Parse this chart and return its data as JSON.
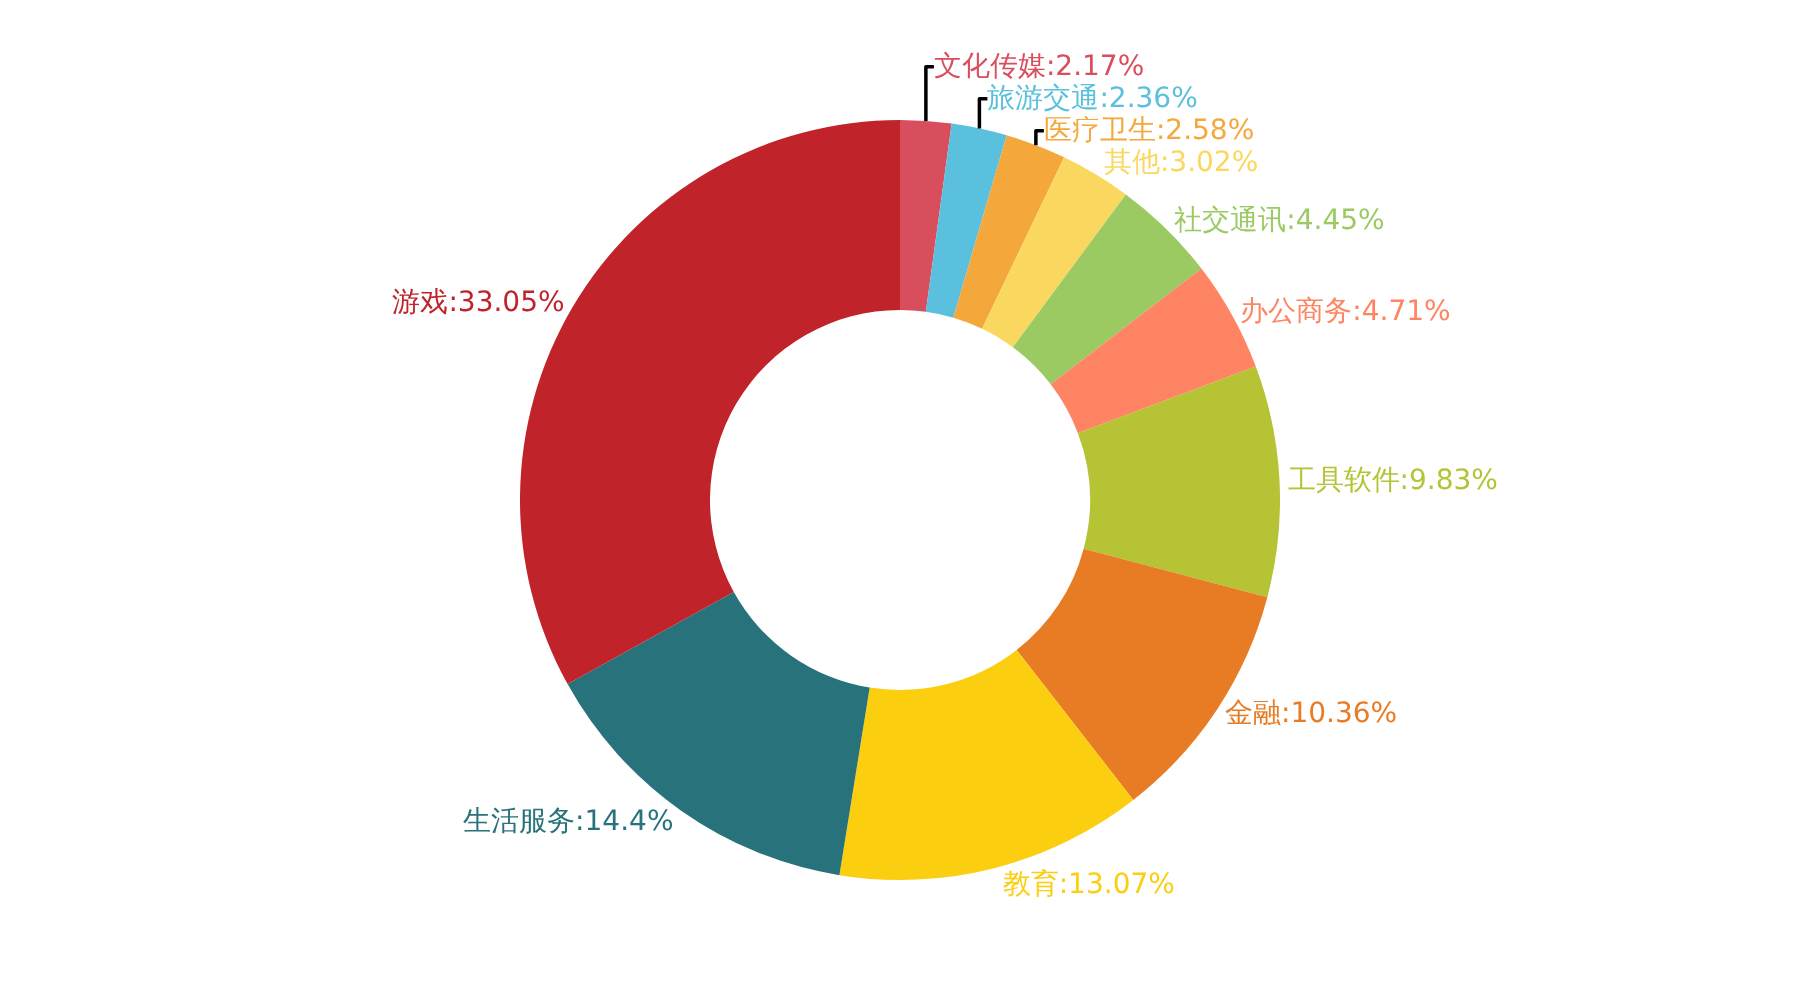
{
  "chart_data": {
    "type": "donut",
    "categories": [
      "文化传媒",
      "旅游交通",
      "医疗卫生",
      "其他",
      "社交通讯",
      "办公商务",
      "工具软件",
      "金融",
      "教育",
      "生活服务",
      "游戏"
    ],
    "values": [
      2.17,
      2.36,
      2.58,
      3.02,
      4.45,
      4.71,
      9.83,
      10.36,
      13.07,
      14.4,
      33.05
    ],
    "value_labels": [
      "2.17%",
      "2.36%",
      "2.58%",
      "3.02%",
      "4.45%",
      "4.71%",
      "9.83%",
      "10.36%",
      "13.07%",
      "14.4%",
      "33.05%"
    ],
    "colors": [
      "#d94e5d",
      "#5bc0de",
      "#f4a73a",
      "#fad860",
      "#9bca63",
      "#ff8463",
      "#b6c334",
      "#e87c25",
      "#fcce10",
      "#27727b",
      "#c1232b"
    ],
    "legend": false
  }
}
